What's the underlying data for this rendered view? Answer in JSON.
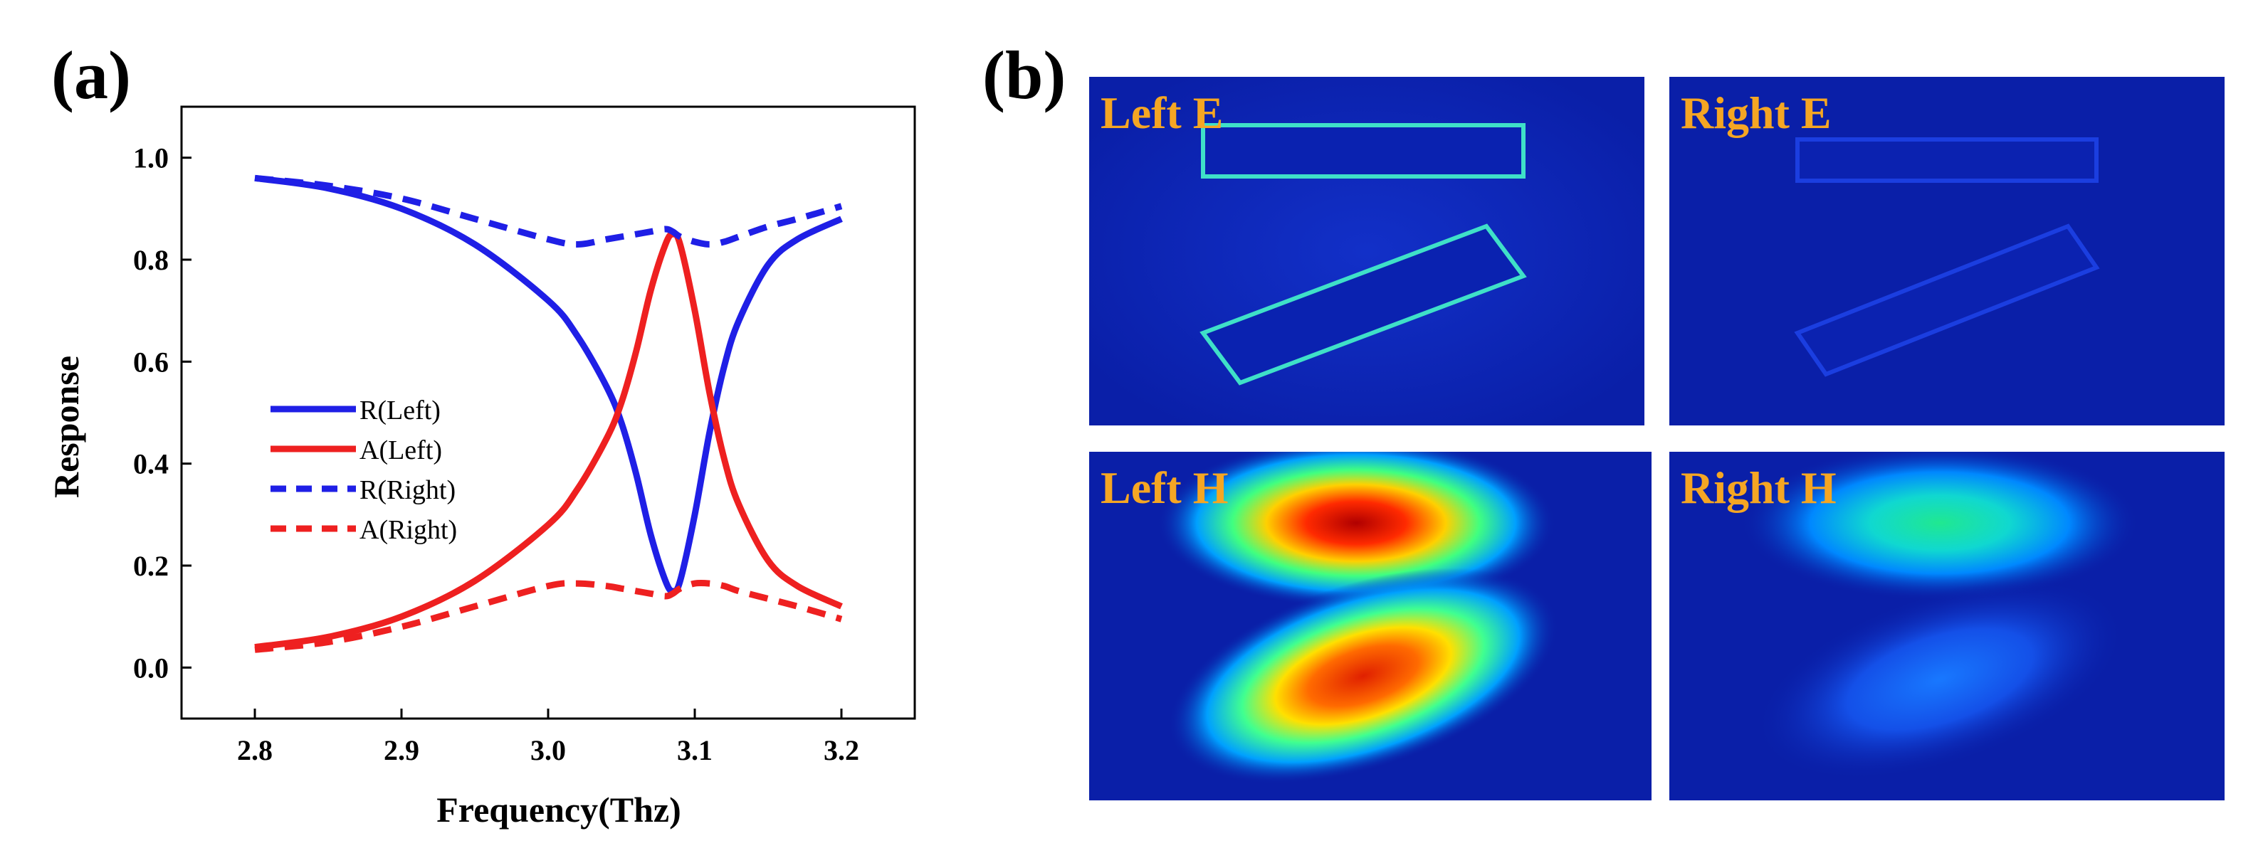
{
  "panels": {
    "a_label": "(a)",
    "b_label": "(b)"
  },
  "chart_data": {
    "type": "line",
    "xlabel": "Frequency(Thz)",
    "ylabel": "Response",
    "xlim": [
      2.75,
      3.25
    ],
    "ylim": [
      -0.1,
      1.1
    ],
    "xticks": [
      2.8,
      2.9,
      3.0,
      3.1,
      3.2
    ],
    "xtick_labels": [
      "2.8",
      "2.9",
      "3.0",
      "3.1",
      "3.2"
    ],
    "yticks": [
      0.0,
      0.2,
      0.4,
      0.6,
      0.8,
      1.0
    ],
    "ytick_labels": [
      "0.0",
      "0.2",
      "0.4",
      "0.6",
      "0.8",
      "1.0"
    ],
    "legend_position": "center-left",
    "x": [
      2.8,
      2.85,
      2.9,
      2.95,
      3.0,
      3.02,
      3.04,
      3.05,
      3.06,
      3.07,
      3.08,
      3.085,
      3.09,
      3.1,
      3.11,
      3.12,
      3.13,
      3.15,
      3.17,
      3.2
    ],
    "series": [
      {
        "name": "R(Left)",
        "color": "#1f1fe6",
        "dash": "solid",
        "values": [
          0.96,
          0.94,
          0.9,
          0.83,
          0.72,
          0.65,
          0.55,
          0.48,
          0.38,
          0.26,
          0.17,
          0.15,
          0.17,
          0.3,
          0.46,
          0.59,
          0.68,
          0.79,
          0.84,
          0.88
        ]
      },
      {
        "name": "A(Left)",
        "color": "#ee2020",
        "dash": "solid",
        "values": [
          0.04,
          0.06,
          0.1,
          0.17,
          0.28,
          0.35,
          0.45,
          0.52,
          0.62,
          0.74,
          0.83,
          0.85,
          0.83,
          0.7,
          0.54,
          0.41,
          0.32,
          0.21,
          0.16,
          0.12
        ]
      },
      {
        "name": "R(Right)",
        "color": "#1f1fe6",
        "dash": "dashed",
        "values": [
          0.96,
          0.945,
          0.92,
          0.88,
          0.84,
          0.83,
          0.84,
          0.845,
          0.85,
          0.855,
          0.86,
          0.855,
          0.845,
          0.835,
          0.83,
          0.835,
          0.845,
          0.865,
          0.88,
          0.905
        ]
      },
      {
        "name": "A(Right)",
        "color": "#ee2020",
        "dash": "dashed",
        "values": [
          0.035,
          0.05,
          0.08,
          0.12,
          0.16,
          0.165,
          0.16,
          0.155,
          0.15,
          0.145,
          0.14,
          0.145,
          0.155,
          0.165,
          0.165,
          0.16,
          0.15,
          0.135,
          0.12,
          0.095
        ]
      }
    ]
  },
  "field_maps": [
    {
      "label": "Left E"
    },
    {
      "label": "Right E"
    },
    {
      "label": "Left H"
    },
    {
      "label": "Right H"
    }
  ]
}
